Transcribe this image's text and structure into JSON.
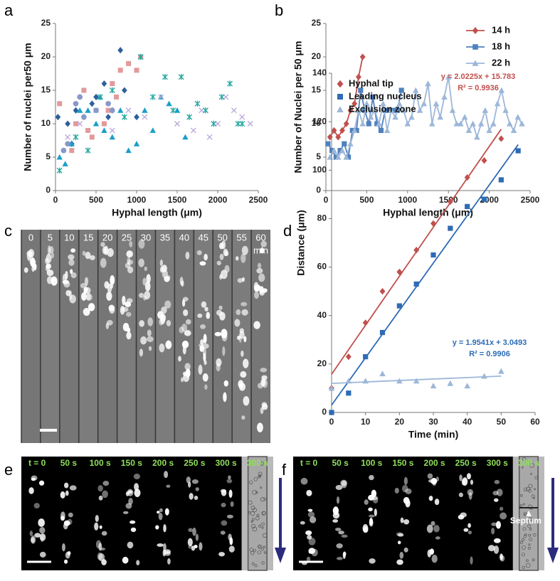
{
  "panel_labels": [
    "a",
    "b",
    "c",
    "d",
    "e",
    "f"
  ],
  "chart_data": [
    {
      "type": "scatter",
      "xlabel": "Hyphal length (μm)",
      "ylabel": "Number of nuclei per50 μm",
      "xlim": [
        0,
        2500
      ],
      "xticks": [
        0,
        500,
        1000,
        1500,
        2000,
        2500
      ],
      "ylim": [
        0,
        25
      ],
      "yticks": [
        0,
        5,
        10,
        15,
        20,
        25
      ],
      "grid": false,
      "series": [
        {
          "color": "#e29a9a",
          "marker": "square",
          "x": [
            50,
            200,
            250,
            350,
            400,
            450,
            600,
            650,
            700,
            750,
            800,
            900,
            1000,
            1050
          ],
          "values": [
            13,
            6,
            10,
            15,
            9,
            8,
            10,
            12,
            16,
            14,
            18,
            19,
            18,
            20
          ]
        },
        {
          "color": "#2e5f9a",
          "marker": "diamond",
          "x": [
            30,
            150,
            200,
            250,
            350,
            450,
            500,
            600,
            650,
            700,
            800,
            850,
            1000
          ],
          "values": [
            11,
            10,
            7,
            12,
            11,
            13,
            14,
            16,
            11,
            12,
            21,
            15,
            11
          ]
        },
        {
          "color": "#1a9fc8",
          "marker": "triangle",
          "x": [
            50,
            120,
            200,
            300,
            400,
            500,
            550,
            600,
            700,
            800,
            900,
            1000,
            1100,
            1200,
            1300,
            1400,
            1500,
            1600
          ],
          "values": [
            5,
            4,
            7,
            12,
            12,
            10,
            14,
            9,
            8,
            12,
            6,
            7,
            12,
            9,
            14,
            13,
            12,
            8
          ]
        },
        {
          "color": "#b8a6d8",
          "marker": "x",
          "x": [
            150,
            300,
            500,
            700,
            900,
            1100,
            1300,
            1500,
            1700,
            1800,
            1900,
            2000,
            2100,
            2200,
            2300,
            2400
          ],
          "values": [
            8,
            10,
            12,
            9,
            12,
            11,
            14,
            10,
            9,
            12,
            8,
            10,
            14,
            12,
            11,
            10
          ]
        },
        {
          "color": "#28a8a0",
          "marker": "asterisk",
          "x": [
            50,
            250,
            400,
            550,
            700,
            850,
            1050,
            1200,
            1350,
            1450,
            1550,
            1650,
            1750,
            1850,
            1950,
            2050,
            2150,
            2250,
            2300
          ],
          "values": [
            3,
            8,
            6,
            14,
            15,
            11,
            20,
            14,
            17,
            12,
            17,
            11,
            13,
            12,
            10,
            14,
            16,
            10,
            10
          ]
        },
        {
          "color": "#8898c8",
          "marker": "circle",
          "x": [
            100,
            150,
            250,
            300,
            350,
            500,
            650,
            700
          ],
          "values": [
            6,
            7,
            13,
            14,
            11,
            12,
            13,
            12
          ]
        }
      ]
    },
    {
      "type": "line",
      "xlabel": "Hyphal length (μm)",
      "ylabel": "Number of Nuclei per 50 μm",
      "xlim": [
        0,
        2500
      ],
      "xticks": [
        0,
        500,
        1000,
        1500,
        2000,
        2500
      ],
      "ylim": [
        0,
        25
      ],
      "yticks": [
        0,
        5,
        10,
        15,
        20,
        25
      ],
      "grid": false,
      "legend": "upper-right",
      "series": [
        {
          "name": "14 h",
          "color": "#c0504d",
          "marker": "diamond",
          "x": [
            50,
            100,
            150,
            200,
            250,
            300,
            350,
            400,
            450
          ],
          "values": [
            8,
            9,
            8,
            9,
            10,
            12,
            13,
            17,
            20
          ]
        },
        {
          "name": "18 h",
          "color": "#4f81bd",
          "marker": "square",
          "x": [
            25,
            75,
            125,
            175,
            225,
            275,
            325,
            375,
            425,
            475,
            525,
            575,
            625,
            675,
            725,
            775,
            825,
            875,
            925
          ],
          "values": [
            7,
            6,
            5,
            6,
            7,
            5,
            9,
            9,
            15,
            12,
            10,
            14,
            10,
            9,
            12,
            12,
            12,
            12,
            15
          ]
        },
        {
          "name": "22 h",
          "color": "#9db7d9",
          "marker": "triangle",
          "x": [
            50,
            100,
            150,
            200,
            250,
            300,
            350,
            400,
            450,
            500,
            550,
            600,
            650,
            700,
            750,
            800,
            850,
            900,
            950,
            1000,
            1050,
            1100,
            1150,
            1200,
            1250,
            1300,
            1350,
            1400,
            1450,
            1500,
            1550,
            1600,
            1650,
            1700,
            1750,
            1800,
            1850,
            1900,
            1950,
            2000,
            2050,
            2100,
            2150,
            2200,
            2250,
            2300,
            2350,
            2400
          ],
          "values": [
            5,
            6,
            5,
            6,
            5,
            7,
            9,
            12,
            10,
            13,
            11,
            12,
            10,
            13,
            9,
            12,
            11,
            13,
            12,
            10,
            11,
            15,
            12,
            13,
            16,
            10,
            13,
            11,
            14,
            17,
            12,
            10,
            10,
            11,
            9,
            10,
            8,
            10,
            12,
            9,
            10,
            13,
            15,
            12,
            10,
            9,
            11,
            10
          ]
        }
      ]
    },
    {
      "type": "scatter",
      "xlabel": "Time (min)",
      "ylabel": "Distance (μm)",
      "xlim": [
        0,
        60
      ],
      "xticks": [
        0,
        10,
        20,
        30,
        40,
        50,
        60
      ],
      "ylim": [
        0,
        140
      ],
      "yticks": [
        0,
        20,
        40,
        60,
        80,
        100,
        120,
        140
      ],
      "grid": false,
      "legend": "upper-left",
      "series": [
        {
          "name": "Hyphal tip",
          "color": "#c0504d",
          "marker": "diamond",
          "x": [
            0,
            5,
            10,
            15,
            20,
            25,
            30,
            35,
            40,
            45,
            50
          ],
          "values": [
            10,
            23,
            37,
            50,
            58,
            67,
            78,
            87,
            97,
            104,
            113
          ],
          "trendline": {
            "slope": 2.0225,
            "intercept": 15.783,
            "equation": "y = 2.0225x + 15.783",
            "r2": "R² = 0.9936"
          }
        },
        {
          "name": "Leading nucleus",
          "color": "#2e6bb5",
          "marker": "square",
          "x": [
            0,
            5,
            10,
            15,
            20,
            25,
            30,
            35,
            40,
            45,
            50,
            55
          ],
          "values": [
            0,
            8,
            23,
            33,
            44,
            53,
            65,
            76,
            85,
            88,
            96,
            108
          ],
          "trendline": {
            "slope": 1.9541,
            "intercept": 3.0493,
            "equation": "y = 1.9541x + 3.0493",
            "r2": "R² = 0.9906"
          }
        },
        {
          "name": "Exclusion zone",
          "color": "#9db7d9",
          "marker": "triangle",
          "x": [
            0,
            5,
            10,
            15,
            20,
            25,
            30,
            35,
            40,
            45,
            50
          ],
          "values": [
            10,
            13,
            13,
            16,
            13,
            13,
            11,
            12,
            11,
            15,
            17
          ],
          "trendline": {
            "slope": 0.06,
            "intercept": 12
          }
        }
      ]
    }
  ],
  "panel_c": {
    "time_labels": [
      "0",
      "5",
      "10",
      "15",
      "20",
      "25",
      "30",
      "35",
      "40",
      "45",
      "50",
      "55",
      "60"
    ],
    "unit": "min"
  },
  "panel_e": {
    "time_labels": [
      "t = 0",
      "50 s",
      "100 s",
      "150 s",
      "200 s",
      "250 s",
      "300 s",
      "300 s"
    ]
  },
  "panel_f": {
    "time_labels": [
      "t = 0",
      "50 s",
      "100 s",
      "150 s",
      "200 s",
      "250 s",
      "300 s",
      "300 s"
    ],
    "annotation": "Septum"
  }
}
